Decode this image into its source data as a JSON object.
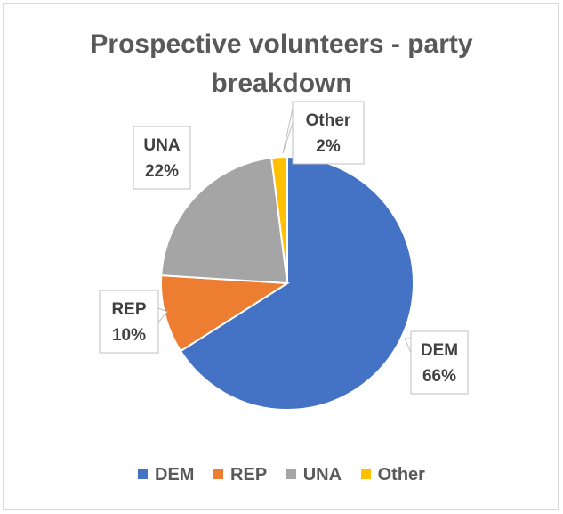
{
  "chart_data": {
    "type": "pie",
    "title_lines": [
      "Prospective volunteers - party",
      "breakdown"
    ],
    "slices": [
      {
        "name": "DEM",
        "value": 66,
        "label": "66%",
        "color": "#4472c4"
      },
      {
        "name": "REP",
        "value": 10,
        "label": "10%",
        "color": "#ed7d31"
      },
      {
        "name": "UNA",
        "value": 22,
        "label": "22%",
        "color": "#a5a5a5"
      },
      {
        "name": "Other",
        "value": 2,
        "label": "2%",
        "color": "#ffc000"
      }
    ],
    "legend_position": "bottom"
  }
}
